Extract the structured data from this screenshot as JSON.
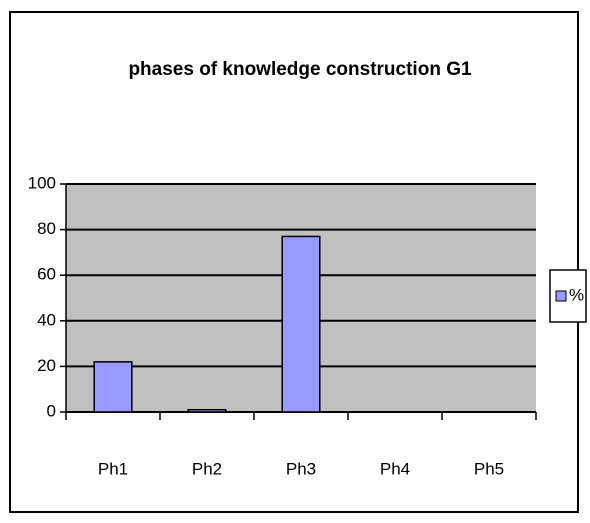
{
  "chart_data": {
    "type": "bar",
    "title": "phases of knowledge construction G1",
    "categories": [
      "Ph1",
      "Ph2",
      "Ph3",
      "Ph4",
      "Ph5"
    ],
    "series": [
      {
        "name": "%",
        "color": "#9999ff",
        "values": [
          22,
          1,
          77,
          0,
          0
        ]
      }
    ],
    "ylim": [
      0,
      100
    ],
    "yticks": [
      0,
      20,
      40,
      60,
      80,
      100
    ],
    "grid": true,
    "legend": "right"
  }
}
